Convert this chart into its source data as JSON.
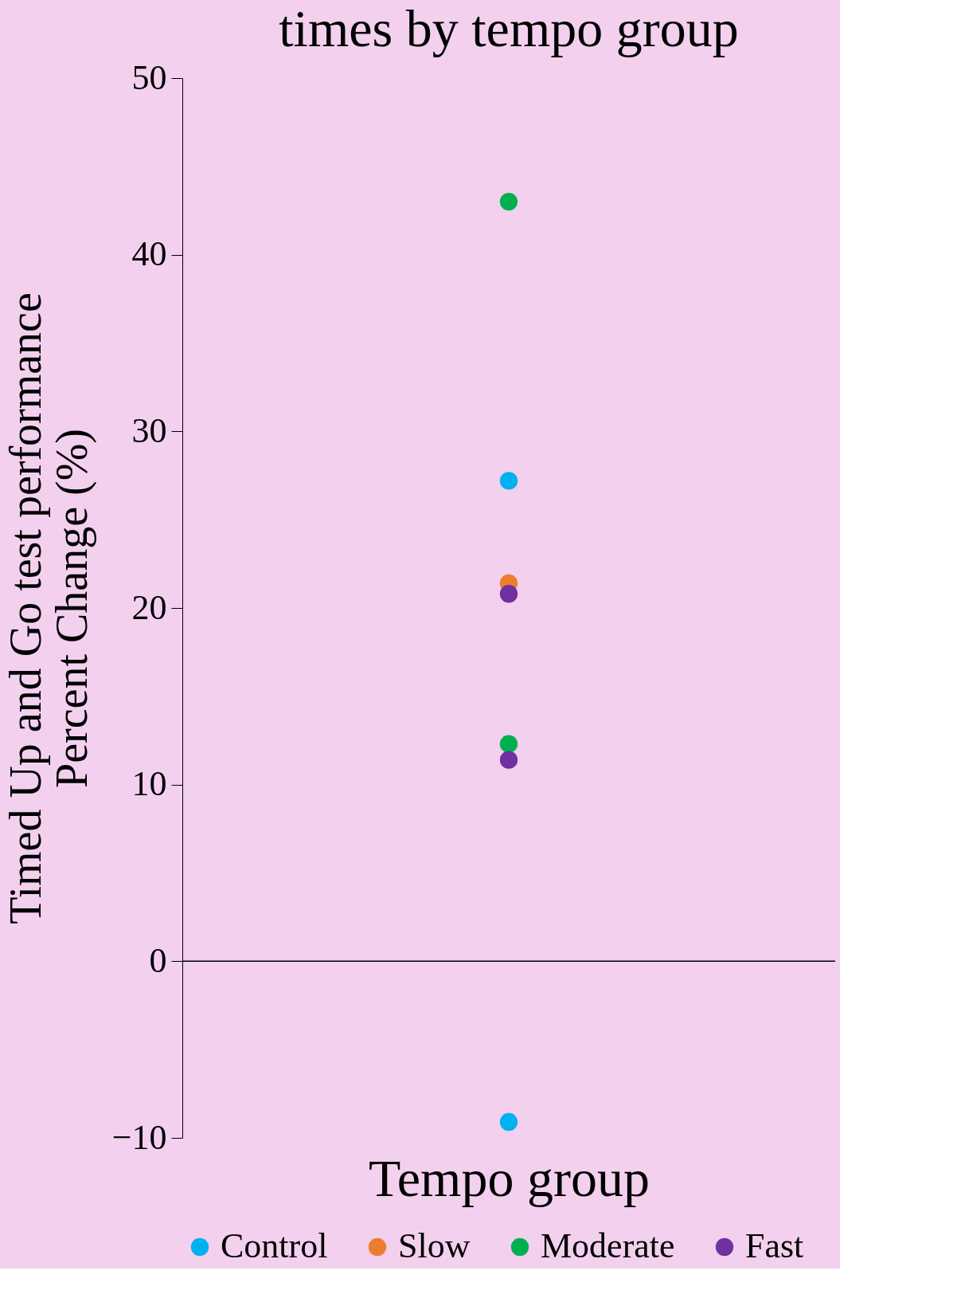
{
  "chart_data": {
    "type": "scatter",
    "title": "times by tempo group",
    "xlabel": "Tempo group",
    "ylabel": "Timed Up and Go test performance\nPercent Change (%)",
    "categories": [
      null
    ],
    "series": [
      {
        "name": "Control",
        "color": "#00b0f0",
        "x": [
          null,
          null
        ],
        "values": [
          27.2,
          -9.1
        ]
      },
      {
        "name": "Slow",
        "color": "#ed7d31",
        "x": [
          null
        ],
        "values": [
          21.4
        ]
      },
      {
        "name": "Moderate",
        "color": "#00b050",
        "x": [
          null,
          null
        ],
        "values": [
          43.0,
          12.3
        ]
      },
      {
        "name": "Fast",
        "color": "#7030a0",
        "x": [
          null,
          null
        ],
        "values": [
          20.8,
          11.4
        ]
      }
    ],
    "ylim": [
      -10,
      50
    ],
    "yticks": [
      -10,
      0,
      10,
      20,
      30,
      40,
      50
    ],
    "ref_lines": [
      {
        "axis": "y",
        "value": 0,
        "color": "#000000"
      }
    ],
    "grid": false,
    "legend": "bottom",
    "marker": "circle",
    "tick_labels": "y"
  }
}
